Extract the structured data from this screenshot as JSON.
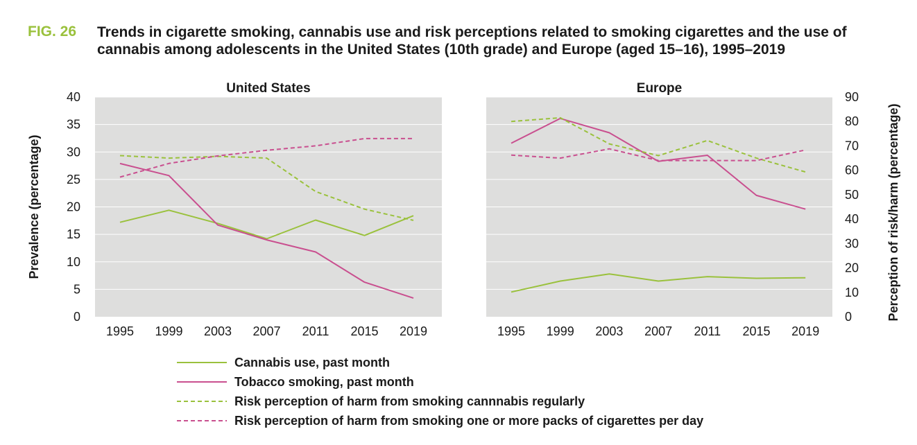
{
  "figure": {
    "label": "FIG. 26",
    "title": "Trends in cigarette smoking, cannabis use and risk perceptions related to smoking cigarettes and the use of cannabis among adolescents in the United States (10th grade) and Europe (aged 15–16), 1995–2019"
  },
  "colors": {
    "panel_bg": "#dededd",
    "cannabis": "#9ac13c",
    "tobacco": "#c94f8f",
    "title_accent": "#9ac13c"
  },
  "chart_data": [
    {
      "type": "line",
      "title": "United States",
      "x": [
        "1995",
        "1999",
        "2003",
        "2007",
        "2011",
        "2015",
        "2019"
      ],
      "ylabel_left": "Prevalence (percentage)",
      "ylim_left": [
        0,
        40
      ],
      "yticks_left": [
        "0",
        "5",
        "10",
        "15",
        "20",
        "25",
        "30",
        "35",
        "40"
      ],
      "ylim_right": [
        0,
        90
      ],
      "grid": true,
      "series": [
        {
          "name": "Cannabis use, past month",
          "axis": "left",
          "style": "solid",
          "color": "#9ac13c",
          "values": [
            17.2,
            19.4,
            17.0,
            14.2,
            17.6,
            14.8,
            18.4
          ]
        },
        {
          "name": "Tobacco smoking, past month",
          "axis": "left",
          "style": "solid",
          "color": "#c94f8f",
          "values": [
            27.9,
            25.7,
            16.7,
            14.0,
            11.8,
            6.3,
            3.4
          ]
        },
        {
          "name": "Risk perception of harm from smoking cannnabis regularly",
          "axis": "right",
          "style": "dashed",
          "color": "#9ac13c",
          "values": [
            66.0,
            65.0,
            65.7,
            65.0,
            51.3,
            44.1,
            39.5
          ]
        },
        {
          "name": "Risk perception of harm from smoking one or more packs of cigarettes per day",
          "axis": "right",
          "style": "dashed",
          "color": "#c94f8f",
          "values": [
            57.2,
            62.8,
            65.9,
            68.2,
            70.0,
            73.0,
            73.0
          ]
        }
      ]
    },
    {
      "type": "line",
      "title": "Europe",
      "x": [
        "1995",
        "1999",
        "2003",
        "2007",
        "2011",
        "2015",
        "2019"
      ],
      "ylabel_right": "Perception of risk/harm (percentage)",
      "ylim_right": [
        0,
        90
      ],
      "yticks_right": [
        "0",
        "10",
        "20",
        "30",
        "40",
        "50",
        "60",
        "70",
        "80",
        "90"
      ],
      "ylim_left": [
        0,
        40
      ],
      "grid": true,
      "series": [
        {
          "name": "Cannabis use, past month",
          "axis": "left",
          "style": "solid",
          "color": "#9ac13c",
          "values": [
            4.5,
            6.5,
            7.8,
            6.5,
            7.3,
            7.0,
            7.1
          ]
        },
        {
          "name": "Tobacco smoking, past month",
          "axis": "left",
          "style": "solid",
          "color": "#c94f8f",
          "values": [
            31.6,
            36.1,
            33.5,
            28.3,
            29.4,
            22.1,
            19.6
          ]
        },
        {
          "name": "Risk perception of harm from smoking cannnabis regularly",
          "axis": "right",
          "style": "dashed",
          "color": "#9ac13c",
          "values": [
            80.0,
            81.5,
            70.8,
            66.0,
            72.2,
            65.0,
            59.3
          ]
        },
        {
          "name": "Risk perception of harm from smoking one or more packs of cigarettes per day",
          "axis": "right",
          "style": "dashed",
          "color": "#c94f8f",
          "values": [
            66.2,
            65.0,
            68.8,
            64.0,
            64.0,
            64.0,
            68.3
          ]
        }
      ]
    }
  ],
  "legend": [
    {
      "label": "Cannabis use, past month",
      "style": "solid",
      "color": "#9ac13c"
    },
    {
      "label": "Tobacco smoking, past month",
      "style": "solid",
      "color": "#c94f8f"
    },
    {
      "label": "Risk perception of harm from smoking cannnabis regularly",
      "style": "dashed",
      "color": "#9ac13c"
    },
    {
      "label": "Risk perception of harm from smoking one or more packs of cigarettes per day",
      "style": "dashed",
      "color": "#c94f8f"
    }
  ]
}
